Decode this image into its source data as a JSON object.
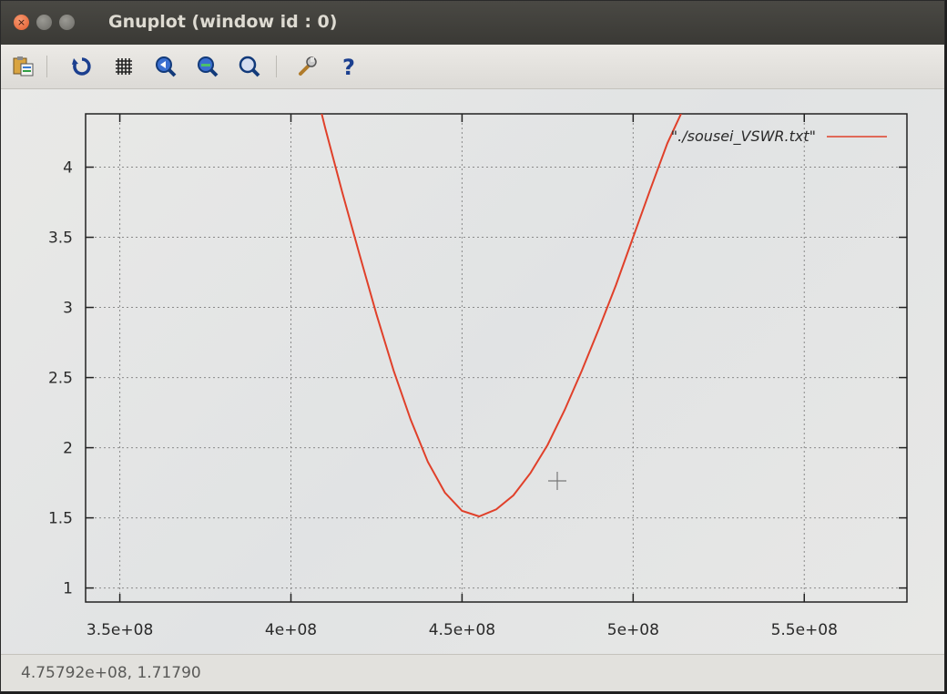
{
  "window": {
    "title": "Gnuplot (window id : 0)"
  },
  "toolbar": {
    "buttons": [
      {
        "icon": "copy-clipboard-icon"
      },
      {
        "icon": "replot-icon"
      },
      {
        "icon": "grid-icon"
      },
      {
        "icon": "zoom-previous-icon"
      },
      {
        "icon": "zoom-next-icon"
      },
      {
        "icon": "autoscale-icon"
      },
      {
        "icon": "settings-wrench-icon"
      },
      {
        "icon": "help-icon"
      }
    ]
  },
  "colors": {
    "series": "#e0402a",
    "grid": "#8a8a8a",
    "border": "#222222"
  },
  "chart_data": {
    "type": "line",
    "title": "",
    "xlabel": "",
    "ylabel": "",
    "xlim": [
      340000000,
      580000000
    ],
    "ylim": [
      0.9,
      4.38
    ],
    "grid": true,
    "legend_position": "top-right",
    "x_ticks": [
      {
        "value": 350000000,
        "label": "3.5e+08"
      },
      {
        "value": 400000000,
        "label": "4e+08"
      },
      {
        "value": 450000000,
        "label": "4.5e+08"
      },
      {
        "value": 500000000,
        "label": "5e+08"
      },
      {
        "value": 550000000,
        "label": "5.5e+08"
      }
    ],
    "y_ticks": [
      {
        "value": 1,
        "label": "1"
      },
      {
        "value": 1.5,
        "label": "1.5"
      },
      {
        "value": 2,
        "label": "2"
      },
      {
        "value": 2.5,
        "label": "2.5"
      },
      {
        "value": 3,
        "label": "3"
      },
      {
        "value": 3.5,
        "label": "3.5"
      },
      {
        "value": 4,
        "label": "4"
      }
    ],
    "series": [
      {
        "name": "\"./sousei_VSWR.txt\"",
        "x": [
          409000000,
          410000000,
          415000000,
          420000000,
          425000000,
          430000000,
          435000000,
          440000000,
          445000000,
          450000000,
          455000000,
          460000000,
          465000000,
          470000000,
          475000000,
          480000000,
          485000000,
          490000000,
          495000000,
          500000000,
          505000000,
          510000000,
          514000000
        ],
        "y": [
          4.38,
          4.28,
          3.82,
          3.38,
          2.95,
          2.55,
          2.2,
          1.9,
          1.68,
          1.55,
          1.51,
          1.56,
          1.66,
          1.82,
          2.02,
          2.27,
          2.55,
          2.85,
          3.16,
          3.5,
          3.84,
          4.17,
          4.38
        ]
      }
    ]
  },
  "status": {
    "coordinates": "4.75792e+08,  1.71790"
  }
}
